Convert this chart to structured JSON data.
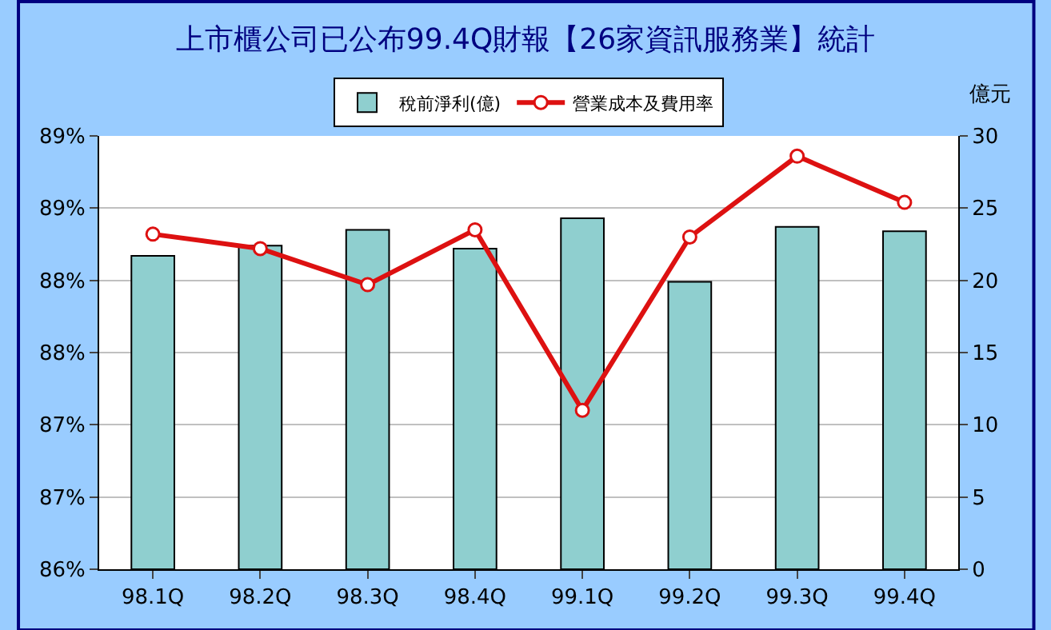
{
  "chart_data": {
    "type": "bar",
    "title": "上市櫃公司已公布99.4Q財報【26家資訊服務業】統計",
    "y2label": "億元",
    "categories": [
      "98.1Q",
      "98.2Q",
      "98.3Q",
      "98.4Q",
      "99.1Q",
      "99.2Q",
      "99.3Q",
      "99.4Q"
    ],
    "series": [
      {
        "name": "稅前淨利(億)",
        "axis": "y2",
        "color": "#8fcfcf",
        "values": [
          21.7,
          22.4,
          23.5,
          22.2,
          24.3,
          19.9,
          23.7,
          23.4
        ]
      },
      {
        "name": "營業成本及費用率",
        "type": "line",
        "axis": "y",
        "color": "#dd1111",
        "marker": "circle",
        "line_style": "solid",
        "values": [
          88.32,
          88.22,
          87.97,
          88.35,
          87.1,
          88.3,
          88.86,
          88.54
        ]
      }
    ],
    "ylim": [
      86,
      89
    ],
    "yticks": [
      {
        "value": 86,
        "label": "86%"
      },
      {
        "value": 86.5,
        "label": "87%"
      },
      {
        "value": 87,
        "label": "87%"
      },
      {
        "value": 87.5,
        "label": "88%"
      },
      {
        "value": 88,
        "label": "88%"
      },
      {
        "value": 88.5,
        "label": "89%"
      },
      {
        "value": 89,
        "label": "89%"
      }
    ],
    "y2lim": [
      0,
      30
    ],
    "y2ticks": [
      0,
      5,
      10,
      15,
      20,
      25,
      30
    ],
    "grid": "y",
    "legend": "top"
  }
}
